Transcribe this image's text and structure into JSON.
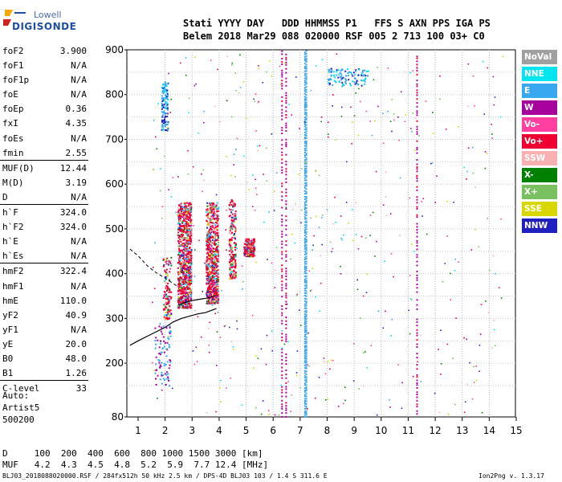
{
  "logo": {
    "line1": "Lowell",
    "line2": "DIGISONDE"
  },
  "header": {
    "line1": "Stati YYYY DAY   DDD HHMMSS P1   FFS S AXN PPS IGA PS",
    "line2": "Belem 2018 Mar29 088 020000 RSF 005 2 713 100 03+ C0"
  },
  "params": [
    {
      "name": "foF2",
      "value": "3.900"
    },
    {
      "name": "foF1",
      "value": "N/A"
    },
    {
      "name": "foF1p",
      "value": "N/A"
    },
    {
      "name": "foE",
      "value": "N/A"
    },
    {
      "name": "foEp",
      "value": "0.36"
    },
    {
      "name": "fxI",
      "value": "4.35"
    },
    {
      "name": "foEs",
      "value": "N/A"
    },
    {
      "name": "fmin",
      "value": "2.55"
    },
    {
      "name": "MUF(D)",
      "value": "12.44"
    },
    {
      "name": "M(D)",
      "value": "3.19"
    },
    {
      "name": "D",
      "value": "N/A"
    },
    {
      "name": "h`F",
      "value": "324.0"
    },
    {
      "name": "h`F2",
      "value": "324.0"
    },
    {
      "name": "h`E",
      "value": "N/A"
    },
    {
      "name": "h`Es",
      "value": "N/A"
    },
    {
      "name": "hmF2",
      "value": "322.4"
    },
    {
      "name": "hmF1",
      "value": "N/A"
    },
    {
      "name": "hmE",
      "value": "110.0"
    },
    {
      "name": "yF2",
      "value": "40.9"
    },
    {
      "name": "yF1",
      "value": "N/A"
    },
    {
      "name": "yE",
      "value": "20.0"
    },
    {
      "name": "B0",
      "value": "48.0"
    },
    {
      "name": "B1",
      "value": "1.26"
    },
    {
      "name": "C-level",
      "value": "33"
    }
  ],
  "auto": {
    "line1": "Auto:",
    "line2": "Artist5",
    "line3": "500200"
  },
  "legend": [
    {
      "label": "NoVal",
      "color": "#a0a0a0"
    },
    {
      "label": "NNE",
      "color": "#00e5f0"
    },
    {
      "label": "E",
      "color": "#38a8f0"
    },
    {
      "label": "W",
      "color": "#a8009c"
    },
    {
      "label": "Vo-",
      "color": "#ff40a0"
    },
    {
      "label": "Vo+",
      "color": "#f00030"
    },
    {
      "label": "SSW",
      "color": "#f8b0b0"
    },
    {
      "label": "X-",
      "color": "#008000"
    },
    {
      "label": "X+",
      "color": "#78c060"
    },
    {
      "label": "SSE",
      "color": "#d8d800"
    },
    {
      "label": "NNW",
      "color": "#2020c0"
    }
  ],
  "bottom": {
    "line1": "D     100  200  400  600  800 1000 1500 3000 [km]",
    "line2": "MUF   4.2  4.3  4.5  4.8  5.2  5.9  7.7 12.4 [MHz]"
  },
  "footer": {
    "left": "BLJ03_2018088020000.RSF / 284fx512h 50 kHz 2.5 km / DPS-4D BLJ03 103 / 1.4 S 311.6 E",
    "right": "Ion2Png v. 1.3.17"
  },
  "chart_data": {
    "type": "scatter",
    "title": "",
    "xlabel": "",
    "ylabel": "",
    "xlim": [
      0.7,
      15
    ],
    "ylim": [
      80,
      900
    ],
    "x_ticks": [
      1,
      2,
      3,
      4,
      5,
      6,
      7,
      8,
      9,
      10,
      11,
      12,
      13,
      14,
      15
    ],
    "y_ticks": [
      80,
      200,
      300,
      400,
      500,
      600,
      700,
      800,
      900
    ],
    "grid": true,
    "legend_position": "right",
    "series": [
      {
        "name": "Vo+ / W",
        "trace_clusters": [
          {
            "x": [
              2.45,
              2.95
            ],
            "y": [
              325,
              560
            ]
          },
          {
            "x": [
              3.5,
              3.95
            ],
            "y": [
              335,
              560
            ]
          },
          {
            "x": [
              4.35,
              4.6
            ],
            "y": [
              390,
              570
            ]
          },
          {
            "x": [
              4.9,
              5.3
            ],
            "y": [
              440,
              480
            ]
          },
          {
            "x": [
              1.9,
              2.2
            ],
            "y": [
              300,
              440
            ]
          }
        ]
      },
      {
        "name": "W",
        "vertical_lines": [
          6.3,
          6.45,
          11.3
        ]
      },
      {
        "name": "E",
        "vertical_lines": [
          7.15,
          7.2
        ]
      },
      {
        "name": "NNE / E",
        "clusters": [
          {
            "x": [
              1.85,
              2.1
            ],
            "y": [
              720,
              830
            ]
          },
          {
            "x": [
              8.0,
              9.5
            ],
            "y": [
              820,
              860
            ]
          }
        ]
      }
    ],
    "profile_line": [
      [
        0.7,
        240
      ],
      [
        1.0,
        250
      ],
      [
        1.5,
        265
      ],
      [
        2.0,
        280
      ],
      [
        2.3,
        292
      ],
      [
        2.6,
        300
      ],
      [
        2.9,
        305
      ],
      [
        3.2,
        310
      ],
      [
        3.5,
        313
      ],
      [
        3.9,
        322
      ]
    ],
    "profile_dashed": [
      [
        0.7,
        455
      ],
      [
        1.0,
        440
      ],
      [
        1.3,
        420
      ],
      [
        1.6,
        405
      ],
      [
        2.0,
        390
      ],
      [
        2.5,
        370
      ]
    ],
    "trace_solid": [
      [
        2.5,
        330
      ],
      [
        2.7,
        335
      ],
      [
        3.0,
        340
      ],
      [
        3.3,
        343
      ],
      [
        3.6,
        346
      ],
      [
        3.9,
        352
      ]
    ]
  }
}
